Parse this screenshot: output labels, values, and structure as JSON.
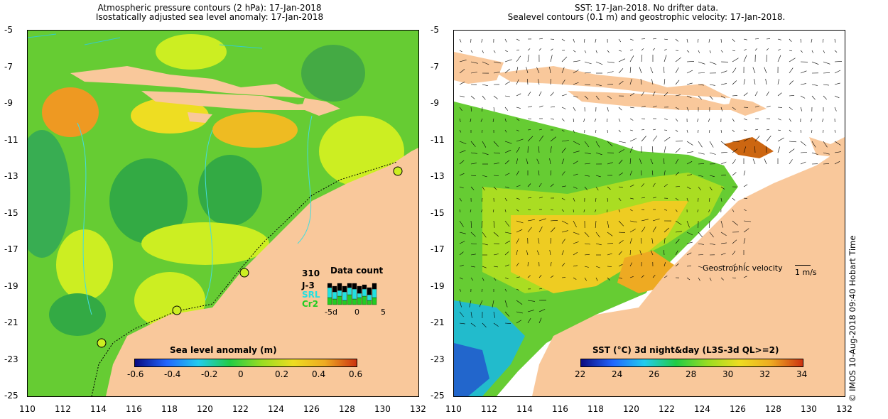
{
  "left_panel": {
    "title_line1": "Atmospheric pressure contours (2 hPa): 17-Jan-2018",
    "title_line2": "Isostatically adjusted sea level anomaly: 17-Jan-2018",
    "colorbar": {
      "label": "Sea level anomaly (m)",
      "ticks": [
        "-0.6",
        "-0.4",
        "-0.2",
        "0",
        "0.2",
        "0.4",
        "0.6"
      ]
    },
    "data_count": {
      "title": "Data count",
      "max": "310",
      "series": [
        {
          "label": "J-3",
          "color": "#000000"
        },
        {
          "label": "SRL",
          "color": "#22e0e0"
        },
        {
          "label": "Cr2",
          "color": "#22cc22"
        }
      ],
      "xticks": [
        "-5d",
        "0",
        "5"
      ]
    }
  },
  "right_panel": {
    "title_line1": "SST: 17-Jan-2018. No drifter data.",
    "title_line2": "Sealevel contours (0.1 m) and geostrophic velocity: 17-Jan-2018.",
    "velocity_label": "Geostrophic velocity",
    "velocity_scale": "1 m/s",
    "colorbar": {
      "label": "SST (°C) 3d night&day (L3S-3d QL>=2)",
      "ticks": [
        "22",
        "24",
        "26",
        "28",
        "30",
        "32",
        "34"
      ]
    }
  },
  "axes": {
    "y_ticks": [
      "-5",
      "-7",
      "-9",
      "-11",
      "-13",
      "-15",
      "-17",
      "-19",
      "-21",
      "-23",
      "-25"
    ],
    "x_ticks": [
      "110",
      "112",
      "114",
      "116",
      "118",
      "120",
      "122",
      "124",
      "126",
      "128",
      "130",
      "132"
    ]
  },
  "credit": "© IMOS 10-Aug-2018 09:40 Hobart Time",
  "colors": {
    "land": "#f9c89b",
    "ocean_green": "#66cc33",
    "ocean_yellow": "#ccee22",
    "sst_orange": "#f0b000"
  }
}
